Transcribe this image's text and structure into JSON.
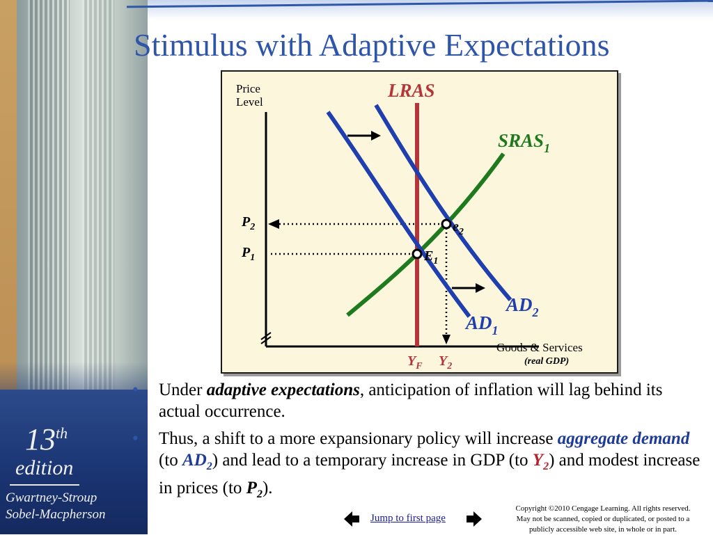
{
  "slide": {
    "title": "Stimulus with Adaptive Expectations",
    "edition": {
      "number": "13",
      "suffix": "th",
      "word": "edition"
    },
    "authors": [
      "Gwartney-Stroup",
      "Sobel-Macpherson"
    ]
  },
  "chart_data": {
    "type": "diagram",
    "y_axis_label_lines": [
      "Price",
      "Level"
    ],
    "x_axis_label": "Goods & Services",
    "x_axis_sublabel": "(real GDP)",
    "curves": {
      "lras": {
        "label": "LRAS"
      },
      "sras": {
        "label": "SRAS",
        "subscript": "1"
      },
      "ad1": {
        "label": "AD",
        "subscript": "1"
      },
      "ad2": {
        "label": "AD",
        "subscript": "2"
      }
    },
    "points": {
      "e1": {
        "label": "E",
        "subscript": "1"
      },
      "e2": {
        "label": "e",
        "subscript": "2"
      }
    },
    "y_ticks": {
      "p2": {
        "label": "P",
        "subscript": "2"
      },
      "p1": {
        "label": "P",
        "subscript": "1"
      }
    },
    "x_ticks": {
      "yf": {
        "label": "Y",
        "subscript": "F"
      },
      "y2": {
        "label": "Y",
        "subscript": "2"
      }
    },
    "colors": {
      "lras": "#b4353a",
      "sras": "#1f7a1f",
      "ad": "#1f3fae",
      "axis": "#000000",
      "panel": "#fcf7dc"
    }
  },
  "bullets": [
    {
      "before": "Under ",
      "emphasis": "adaptive expectations",
      "after": ", anticipation of inflation will lag behind its actual occurrence."
    },
    {
      "t1": "Thus, a shift to a more expansionary policy will increase ",
      "e1": "aggregate demand",
      "t2": " (to ",
      "e2": "AD",
      "e2_sub": "2",
      "t3": ") and lead to a temporary increase in GDP (to ",
      "e3": "Y",
      "e3_sub": "2",
      "t4": ") and modest increase in prices (to ",
      "e4": "P",
      "e4_sub": "2",
      "t5": ")."
    }
  ],
  "footer": {
    "jump_link": "Jump to first page",
    "copyright_lines": [
      "Copyright ©2010 Cengage Learning. All rights reserved.",
      "May not be scanned, copied or duplicated, or posted to a",
      "publicly accessible web site, in whole or in part."
    ]
  }
}
